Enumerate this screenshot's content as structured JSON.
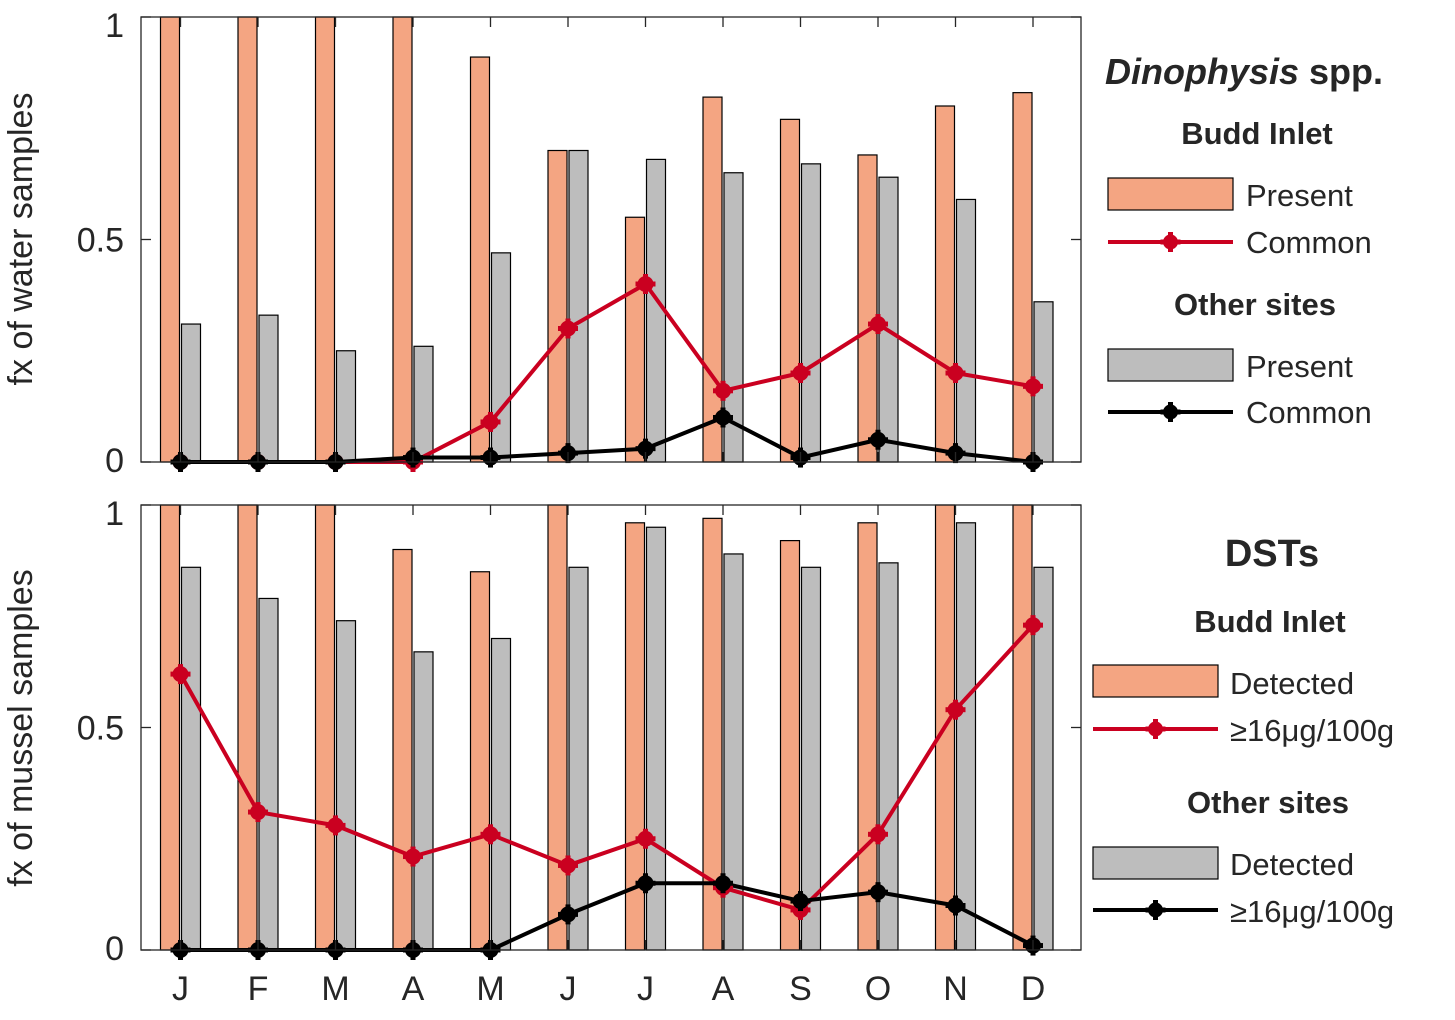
{
  "colors": {
    "budd_bar": "#f4a582",
    "other_bar": "#bdbdbd",
    "budd_line": "#ca0020",
    "other_line": "#000000",
    "axis": "#262626"
  },
  "chart_data": [
    {
      "type": "bar",
      "panel": "top",
      "ylabel": "fx of water samples",
      "ylim": [
        0,
        1
      ],
      "yticks": [
        "0",
        "0.5",
        "1"
      ],
      "categories": [
        "J",
        "F",
        "M",
        "A",
        "M",
        "J",
        "J",
        "A",
        "S",
        "O",
        "N",
        "D"
      ],
      "series": [
        {
          "name": "Present",
          "group": "Budd Inlet",
          "kind": "bar",
          "values": [
            1.0,
            1.0,
            1.0,
            1.0,
            0.91,
            0.7,
            0.55,
            0.82,
            0.77,
            0.69,
            0.8,
            0.83
          ]
        },
        {
          "name": "Present",
          "group": "Other sites",
          "kind": "bar",
          "values": [
            0.31,
            0.33,
            0.25,
            0.26,
            0.47,
            0.7,
            0.68,
            0.65,
            0.67,
            0.64,
            0.59,
            0.36
          ]
        },
        {
          "name": "Common",
          "group": "Budd Inlet",
          "kind": "line",
          "values": [
            0.0,
            0.0,
            0.0,
            0.0,
            0.09,
            0.3,
            0.4,
            0.16,
            0.2,
            0.31,
            0.2,
            0.17
          ]
        },
        {
          "name": "Common",
          "group": "Other sites",
          "kind": "line",
          "values": [
            0.0,
            0.0,
            0.0,
            0.01,
            0.01,
            0.02,
            0.03,
            0.1,
            0.01,
            0.05,
            0.02,
            0.0
          ]
        }
      ],
      "legend": {
        "title": "Dinophysis spp.",
        "placement": "right",
        "groups": [
          {
            "label": "Budd Inlet",
            "bar_label": "Present",
            "line_label": "Common"
          },
          {
            "label": "Other sites",
            "bar_label": "Present",
            "line_label": "Common"
          }
        ]
      }
    },
    {
      "type": "bar",
      "panel": "bottom",
      "ylabel": "fx of mussel samples",
      "ylim": [
        0,
        1
      ],
      "yticks": [
        "0",
        "0.5",
        "1"
      ],
      "categories": [
        "J",
        "F",
        "M",
        "A",
        "M",
        "J",
        "J",
        "A",
        "S",
        "O",
        "N",
        "D"
      ],
      "series": [
        {
          "name": "Detected",
          "group": "Budd Inlet",
          "kind": "bar",
          "values": [
            1.0,
            1.0,
            1.0,
            0.9,
            0.85,
            1.0,
            0.96,
            0.97,
            0.92,
            0.96,
            1.0,
            1.0
          ]
        },
        {
          "name": "Detected",
          "group": "Other sites",
          "kind": "bar",
          "values": [
            0.86,
            0.79,
            0.74,
            0.67,
            0.7,
            0.86,
            0.95,
            0.89,
            0.86,
            0.87,
            0.96,
            0.86
          ]
        },
        {
          "name": "≥16μg/100g",
          "group": "Budd Inlet",
          "kind": "line",
          "values": [
            0.62,
            0.31,
            0.28,
            0.21,
            0.26,
            0.19,
            0.25,
            0.14,
            0.09,
            0.26,
            0.54,
            0.73
          ]
        },
        {
          "name": "≥16μg/100g",
          "group": "Other sites",
          "kind": "line",
          "values": [
            0.0,
            0.0,
            0.0,
            0.0,
            0.0,
            0.08,
            0.15,
            0.15,
            0.11,
            0.13,
            0.1,
            0.01
          ]
        }
      ],
      "legend": {
        "title": "DSTs",
        "placement": "right",
        "groups": [
          {
            "label": "Budd Inlet",
            "bar_label": "Detected",
            "line_label": "≥16μg/100g"
          },
          {
            "label": "Other sites",
            "bar_label": "Detected",
            "line_label": "≥16μg/100g"
          }
        ]
      }
    }
  ]
}
